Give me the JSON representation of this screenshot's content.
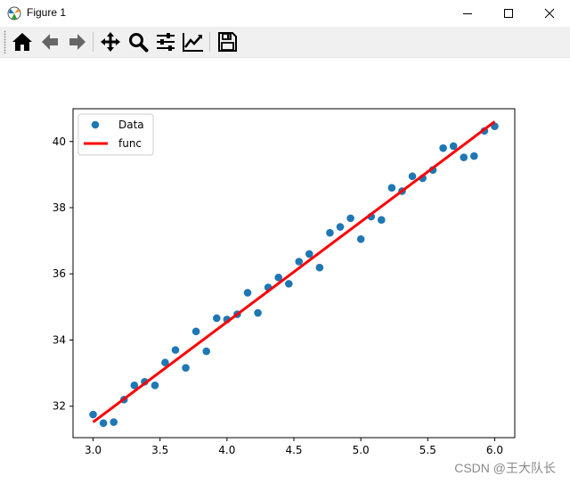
{
  "window": {
    "title": "Figure 1",
    "icon": "matplotlib-icon"
  },
  "toolbar": {
    "buttons": [
      {
        "name": "home-icon",
        "tooltip": "Reset original view"
      },
      {
        "name": "back-arrow-icon",
        "tooltip": "Back"
      },
      {
        "name": "forward-arrow-icon",
        "tooltip": "Forward"
      },
      {
        "name": "pan-move-icon",
        "tooltip": "Pan"
      },
      {
        "name": "zoom-magnifier-icon",
        "tooltip": "Zoom"
      },
      {
        "name": "configure-subplots-icon",
        "tooltip": "Configure subplots"
      },
      {
        "name": "edit-axes-icon",
        "tooltip": "Edit axis"
      },
      {
        "name": "save-floppy-icon",
        "tooltip": "Save"
      }
    ]
  },
  "chart_data": {
    "type": "scatter",
    "title": "",
    "xlabel": "",
    "ylabel": "",
    "xlim": [
      2.85,
      6.15
    ],
    "ylim": [
      31.05,
      40.99
    ],
    "xticks": [
      "3.0",
      "3.5",
      "4.0",
      "4.5",
      "5.0",
      "5.5",
      "6.0"
    ],
    "xtick_values": [
      3.0,
      3.5,
      4.0,
      4.5,
      5.0,
      5.5,
      6.0
    ],
    "yticks": [
      "32",
      "34",
      "36",
      "38",
      "40"
    ],
    "ytick_values": [
      32,
      34,
      36,
      38,
      40
    ],
    "grid": false,
    "legend_position": "upper-left",
    "series": [
      {
        "name": "Data",
        "kind": "scatter",
        "color": "#1f77b4",
        "x": [
          3.0,
          3.077,
          3.154,
          3.231,
          3.308,
          3.385,
          3.462,
          3.538,
          3.615,
          3.692,
          3.769,
          3.846,
          3.923,
          4.0,
          4.077,
          4.154,
          4.231,
          4.308,
          4.385,
          4.462,
          4.538,
          4.615,
          4.692,
          4.769,
          4.846,
          4.923,
          5.0,
          5.077,
          5.154,
          5.231,
          5.308,
          5.385,
          5.462,
          5.538,
          5.615,
          5.692,
          5.769,
          5.846,
          5.923,
          6.0
        ],
        "y": [
          31.75,
          31.49,
          31.52,
          32.2,
          32.63,
          32.74,
          32.63,
          33.32,
          33.7,
          33.16,
          34.26,
          33.66,
          34.66,
          34.62,
          34.78,
          35.43,
          34.82,
          35.59,
          35.89,
          35.7,
          36.37,
          36.6,
          36.19,
          37.24,
          37.42,
          37.68,
          37.05,
          37.73,
          37.63,
          38.6,
          38.5,
          38.95,
          38.89,
          39.14,
          39.8,
          39.86,
          39.52,
          39.56,
          40.32,
          40.46
        ]
      },
      {
        "name": "func",
        "kind": "line",
        "color": "#ff0000",
        "x": [
          3.0,
          6.0
        ],
        "y": [
          31.52,
          40.6
        ]
      }
    ]
  },
  "watermark": "CSDN @王大队长"
}
